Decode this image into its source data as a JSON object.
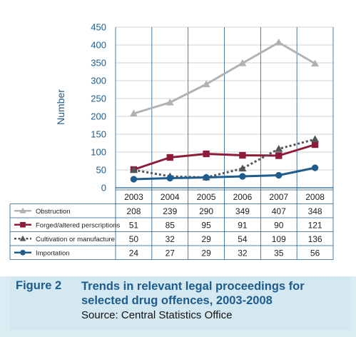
{
  "chart_data": {
    "type": "line",
    "title": "",
    "xlabel": "",
    "ylabel": "Number",
    "ylim": [
      0,
      450
    ],
    "yticks": [
      "0",
      "50",
      "100",
      "150",
      "200",
      "250",
      "300",
      "350",
      "400",
      "450"
    ],
    "grid": true,
    "categories": [
      "2003",
      "2004",
      "2005",
      "2006",
      "2007",
      "2008"
    ],
    "series": [
      {
        "name": "Obstruction",
        "values": [
          208,
          239,
          290,
          349,
          407,
          348
        ],
        "color": "#b2b2b2",
        "marker": "triangle",
        "dash": "solid"
      },
      {
        "name": "Forged/altered perscriptions",
        "values": [
          51,
          85,
          95,
          91,
          90,
          121
        ],
        "color": "#8c1c3a",
        "marker": "square",
        "dash": "solid"
      },
      {
        "name": "Cultivation or manufacture",
        "values": [
          50,
          32,
          29,
          54,
          109,
          136
        ],
        "color": "#555555",
        "marker": "triangle",
        "dash": "dotted"
      },
      {
        "name": "Importation",
        "values": [
          24,
          27,
          29,
          32,
          35,
          56
        ],
        "color": "#1d5c8c",
        "marker": "circle",
        "dash": "solid"
      }
    ]
  },
  "caption": {
    "figure_number": "Figure 2",
    "title": "Trends in relevant legal proceedings for selected drug offences, 2003-2008",
    "source": "Source: Central Statistics Office"
  }
}
